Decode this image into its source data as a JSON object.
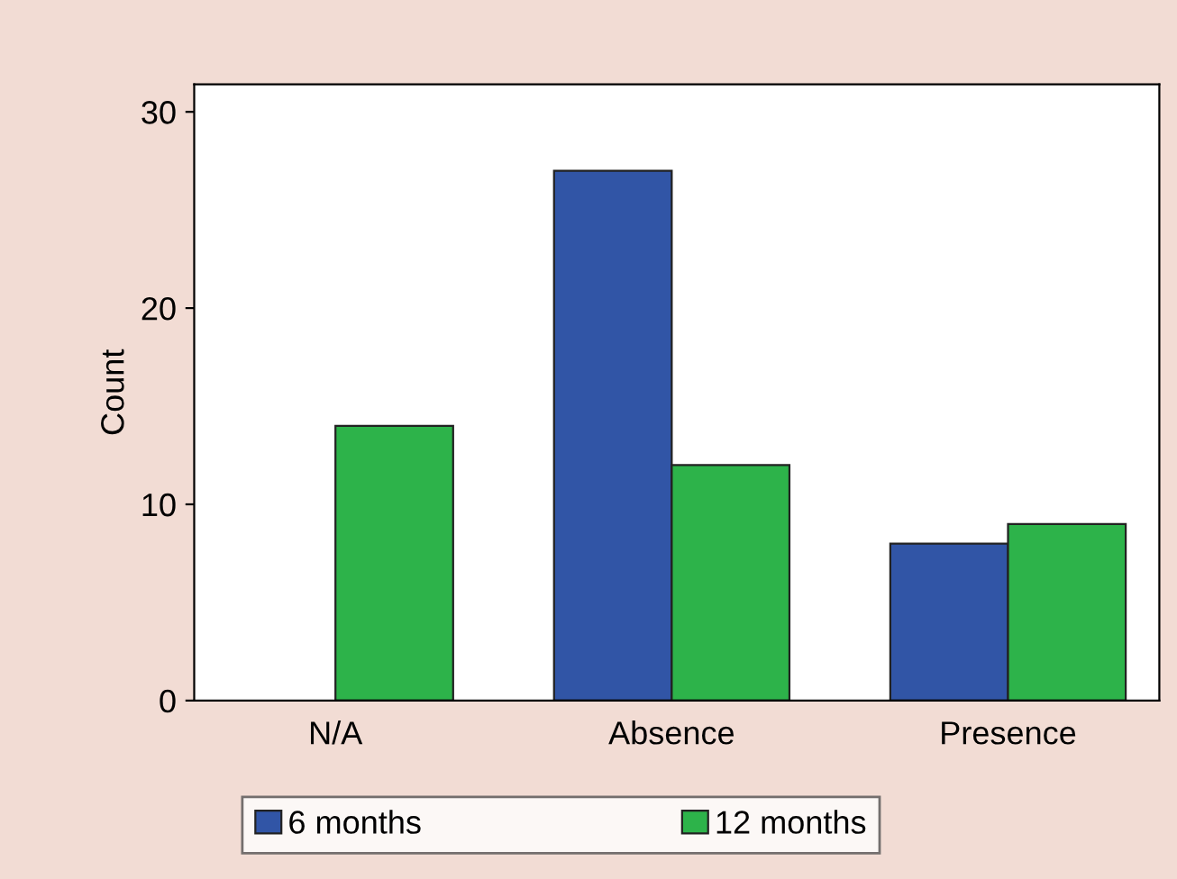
{
  "chart_data": {
    "type": "bar",
    "ylabel": "Count",
    "categories": [
      "N/A",
      "Absence",
      "Presence"
    ],
    "series": [
      {
        "name": "6 months",
        "color": "#3155a6",
        "values": [
          null,
          27,
          8
        ]
      },
      {
        "name": "12 months",
        "color": "#2db34a",
        "values": [
          14,
          12,
          9
        ]
      }
    ],
    "ylim": [
      0,
      31.4
    ],
    "yticks": [
      0,
      10,
      20,
      30
    ],
    "grid": false,
    "legend": "bottom"
  }
}
